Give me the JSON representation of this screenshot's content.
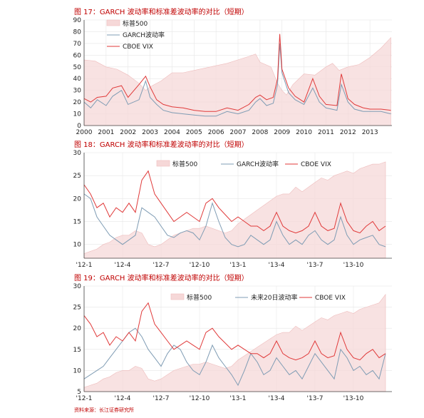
{
  "figures": [
    {
      "title": "图 17：GARCH 波动率和标准差波动率的对比（短期）"
    },
    {
      "title": "图 18：GARCH 波动率和标准差波动率的对比（短期）"
    },
    {
      "title": "图 19：GARCH 波动率和标准差波动率的对比（短期）"
    }
  ],
  "source": "资料来源：长江证券研究所",
  "colors": {
    "title": "#c00000",
    "spx_fill": "#f6d8d8",
    "garch": "#7f9cb4",
    "vix": "#e03a3a"
  },
  "chart_data": [
    {
      "type": "area",
      "ylim": [
        0,
        90
      ],
      "yticks": [
        0,
        10,
        20,
        30,
        40,
        50,
        60,
        70,
        80,
        90
      ],
      "x_labels": [
        "2000",
        "2001",
        "2002",
        "2003",
        "2004",
        "2005",
        "2006",
        "2007",
        "2008",
        "2009",
        "2010",
        "2011",
        "2012",
        "2013"
      ],
      "legend": "top-left",
      "series": [
        {
          "name": "标普500",
          "kind": "area",
          "x": [
            2000,
            2000.5,
            2001,
            2001.5,
            2002,
            2002.5,
            2002.8,
            2003,
            2003.5,
            2004,
            2004.5,
            2005,
            2005.5,
            2006,
            2006.5,
            2007,
            2007.5,
            2007.8,
            2008,
            2008.5,
            2008.8,
            2009,
            2009.2,
            2009.5,
            2010,
            2010.5,
            2011,
            2011.3,
            2011.6,
            2012,
            2012.5,
            2013,
            2013.5,
            2013.95
          ],
          "values": [
            56,
            55,
            50,
            48,
            43,
            36,
            30,
            33,
            38,
            45,
            45,
            47,
            49,
            51,
            53,
            56,
            59,
            61,
            54,
            50,
            36,
            30,
            26,
            35,
            44,
            43,
            50,
            53,
            47,
            50,
            52,
            58,
            66,
            75
          ]
        },
        {
          "name": "GARCH波动率",
          "kind": "line",
          "x": [
            2000,
            2000.3,
            2000.6,
            2001,
            2001.3,
            2001.7,
            2002,
            2002.5,
            2002.8,
            2003,
            2003.3,
            2003.6,
            2004,
            2004.5,
            2005,
            2005.5,
            2006,
            2006.5,
            2007,
            2007.5,
            2007.8,
            2008,
            2008.3,
            2008.6,
            2008.8,
            2008.9,
            2009,
            2009.3,
            2009.6,
            2010,
            2010.4,
            2010.7,
            2011,
            2011.5,
            2011.7,
            2012,
            2012.3,
            2012.7,
            2013,
            2013.5,
            2013.95
          ],
          "values": [
            20,
            15,
            22,
            17,
            25,
            30,
            18,
            22,
            38,
            24,
            18,
            13,
            11,
            10,
            9,
            8,
            8,
            12,
            10,
            13,
            20,
            23,
            17,
            19,
            35,
            70,
            45,
            28,
            22,
            18,
            32,
            20,
            15,
            13,
            35,
            20,
            14,
            12,
            12,
            12,
            10
          ]
        },
        {
          "name": "CBOE VIX",
          "kind": "line",
          "x": [
            2000,
            2000.3,
            2000.6,
            2001,
            2001.3,
            2001.7,
            2002,
            2002.5,
            2002.8,
            2003,
            2003.3,
            2003.6,
            2004,
            2004.5,
            2005,
            2005.5,
            2006,
            2006.5,
            2007,
            2007.5,
            2007.8,
            2008,
            2008.3,
            2008.6,
            2008.8,
            2008.9,
            2009,
            2009.3,
            2009.6,
            2010,
            2010.4,
            2010.7,
            2011,
            2011.5,
            2011.7,
            2012,
            2012.3,
            2012.7,
            2013,
            2013.5,
            2013.95
          ],
          "values": [
            23,
            20,
            24,
            25,
            32,
            34,
            24,
            35,
            42,
            33,
            22,
            18,
            16,
            15,
            13,
            12,
            12,
            15,
            13,
            18,
            24,
            26,
            22,
            24,
            40,
            78,
            48,
            32,
            25,
            20,
            40,
            25,
            18,
            17,
            44,
            23,
            18,
            15,
            14,
            14,
            13
          ]
        }
      ]
    },
    {
      "type": "area",
      "ylim": [
        7,
        30
      ],
      "yticks": [
        10,
        15,
        20,
        25,
        30
      ],
      "x_labels": [
        "'12-1",
        "'12-4",
        "'12-7",
        "'12-10",
        "'13-1",
        "'13-4",
        "'13-7",
        "'13-10"
      ],
      "legend": "top-center",
      "series": [
        {
          "name": "标普500",
          "kind": "area",
          "x": [
            0,
            0.5,
            1,
            1.5,
            2,
            2.5,
            3,
            3.5,
            4,
            4.5,
            5,
            5.5,
            6,
            6.5,
            7,
            7.5,
            8,
            8.5,
            9,
            9.5,
            10,
            10.5,
            11,
            11.5,
            12,
            12.5,
            13,
            13.5,
            14,
            14.5,
            15,
            15.5,
            16,
            16.5,
            17,
            17.5,
            18,
            18.5,
            19,
            19.5,
            20,
            20.5,
            21,
            21.5,
            22,
            22.5,
            23,
            23.5
          ],
          "values": [
            8,
            8.5,
            9,
            10,
            10.5,
            11.5,
            12,
            12,
            13,
            12.5,
            10,
            9.5,
            10,
            11,
            12,
            12.5,
            13,
            13.5,
            13.5,
            14,
            13.5,
            13,
            12.5,
            13,
            14.5,
            15.5,
            16.5,
            17.5,
            18.5,
            19.5,
            20.5,
            21,
            21,
            22.5,
            21.5,
            22.5,
            23.5,
            24.5,
            24,
            25,
            25.5,
            26,
            25.5,
            26.5,
            27,
            27.5,
            27.5,
            28
          ]
        },
        {
          "name": "GARCH波动率",
          "kind": "line",
          "x": [
            0,
            0.5,
            1,
            1.5,
            2,
            2.5,
            3,
            3.5,
            4,
            4.5,
            5,
            5.5,
            6,
            6.5,
            7,
            7.5,
            8,
            8.5,
            9,
            9.5,
            10,
            10.5,
            11,
            11.5,
            12,
            12.5,
            13,
            13.5,
            14,
            14.5,
            15,
            15.5,
            16,
            16.5,
            17,
            17.5,
            18,
            18.5,
            19,
            19.5,
            20,
            20.5,
            21,
            21.5,
            22,
            22.5,
            23,
            23.5
          ],
          "values": [
            21,
            20,
            16,
            14,
            12,
            11,
            10,
            11,
            12,
            18,
            17,
            16,
            14,
            12,
            11.5,
            12.5,
            13,
            12.5,
            11,
            14,
            19,
            15,
            11.5,
            10,
            9.5,
            10,
            12,
            11,
            10,
            11,
            15,
            12,
            10,
            11,
            10,
            12,
            13,
            11,
            10,
            11,
            16,
            12,
            10,
            11,
            11.5,
            12,
            10,
            9.5
          ]
        },
        {
          "name": "CBOE VIX",
          "kind": "line",
          "x": [
            0,
            0.5,
            1,
            1.5,
            2,
            2.5,
            3,
            3.5,
            4,
            4.5,
            5,
            5.5,
            6,
            6.5,
            7,
            7.5,
            8,
            8.5,
            9,
            9.5,
            10,
            10.5,
            11,
            11.5,
            12,
            12.5,
            13,
            13.5,
            14,
            14.5,
            15,
            15.5,
            16,
            16.5,
            17,
            17.5,
            18,
            18.5,
            19,
            19.5,
            20,
            20.5,
            21,
            21.5,
            22,
            22.5,
            23,
            23.5
          ],
          "values": [
            23,
            21,
            18,
            19,
            16,
            18,
            17,
            19,
            17,
            24,
            26,
            21,
            19,
            17,
            15,
            16,
            17,
            16,
            15,
            19,
            20,
            18,
            16.5,
            15,
            16,
            15,
            14,
            14,
            13,
            14,
            17,
            14,
            13,
            12.5,
            13,
            14,
            17,
            14,
            13,
            13.5,
            19,
            15,
            13,
            12.5,
            14,
            15,
            13,
            14
          ]
        }
      ]
    },
    {
      "type": "area",
      "ylim": [
        5,
        30
      ],
      "yticks": [
        5,
        10,
        15,
        20,
        25,
        30
      ],
      "x_labels": [
        "'12-1",
        "'12-4",
        "'12-7",
        "'12-10",
        "'13-1",
        "'13-4",
        "'13-7",
        "'13-10"
      ],
      "legend": "top-right",
      "series": [
        {
          "name": "标普500",
          "kind": "area",
          "x": [
            0,
            0.5,
            1,
            1.5,
            2,
            2.5,
            3,
            3.5,
            4,
            4.5,
            5,
            5.5,
            6,
            6.5,
            7,
            7.5,
            8,
            8.5,
            9,
            9.5,
            10,
            10.5,
            11,
            11.5,
            12,
            12.5,
            13,
            13.5,
            14,
            14.5,
            15,
            15.5,
            16,
            16.5,
            17,
            17.5,
            18,
            18.5,
            19,
            19.5,
            20,
            20.5,
            21,
            21.5,
            22,
            22.5,
            23,
            23.5
          ],
          "values": [
            6,
            6.5,
            7,
            8,
            8.5,
            9.5,
            10,
            10,
            11,
            10.5,
            8,
            7.5,
            8,
            9,
            10,
            10.5,
            11,
            11.5,
            11.5,
            12,
            11.5,
            11,
            10.5,
            11,
            12.5,
            13.5,
            14.5,
            15.5,
            16.5,
            17.5,
            18.5,
            19,
            19,
            20.5,
            19.5,
            20.5,
            21.5,
            22.5,
            22,
            23,
            23.5,
            24,
            23.5,
            24.5,
            25,
            25.5,
            26,
            28
          ]
        },
        {
          "name": "未来20日波动率",
          "kind": "line",
          "x": [
            0,
            0.5,
            1,
            1.5,
            2,
            2.5,
            3,
            3.5,
            4,
            4.5,
            5,
            5.5,
            6,
            6.5,
            7,
            7.5,
            8,
            8.5,
            9,
            9.5,
            10,
            10.5,
            11,
            11.5,
            12,
            12.5,
            13,
            13.5,
            14,
            14.5,
            15,
            15.5,
            16,
            16.5,
            17,
            17.5,
            18,
            18.5,
            19,
            19.5,
            20,
            20.5,
            21,
            21.5,
            22,
            22.5,
            23,
            23.5
          ],
          "values": [
            8,
            9,
            10,
            11,
            13,
            15,
            17,
            19,
            20,
            18,
            15,
            13,
            11,
            14,
            16,
            15,
            12,
            10,
            9,
            12,
            16,
            13,
            11,
            9,
            6.5,
            10,
            14,
            12,
            9,
            10,
            13,
            11,
            9,
            10,
            8,
            11,
            14,
            12,
            10,
            8,
            15,
            13,
            10,
            11,
            9,
            10,
            8,
            14
          ]
        },
        {
          "name": "CBOE VIX",
          "kind": "line",
          "x": [
            0,
            0.5,
            1,
            1.5,
            2,
            2.5,
            3,
            3.5,
            4,
            4.5,
            5,
            5.5,
            6,
            6.5,
            7,
            7.5,
            8,
            8.5,
            9,
            9.5,
            10,
            10.5,
            11,
            11.5,
            12,
            12.5,
            13,
            13.5,
            14,
            14.5,
            15,
            15.5,
            16,
            16.5,
            17,
            17.5,
            18,
            18.5,
            19,
            19.5,
            20,
            20.5,
            21,
            21.5,
            22,
            22.5,
            23,
            23.5
          ],
          "values": [
            23,
            21,
            18,
            19,
            16,
            18,
            17,
            19,
            17,
            24,
            26,
            21,
            19,
            17,
            15,
            16,
            17,
            16,
            15,
            19,
            20,
            18,
            16.5,
            15,
            16,
            15,
            14,
            14,
            13,
            14,
            17,
            14,
            13,
            12.5,
            13,
            14,
            17,
            14,
            13,
            13.5,
            19,
            15,
            13,
            12.5,
            14,
            15,
            13,
            14
          ]
        }
      ]
    }
  ]
}
